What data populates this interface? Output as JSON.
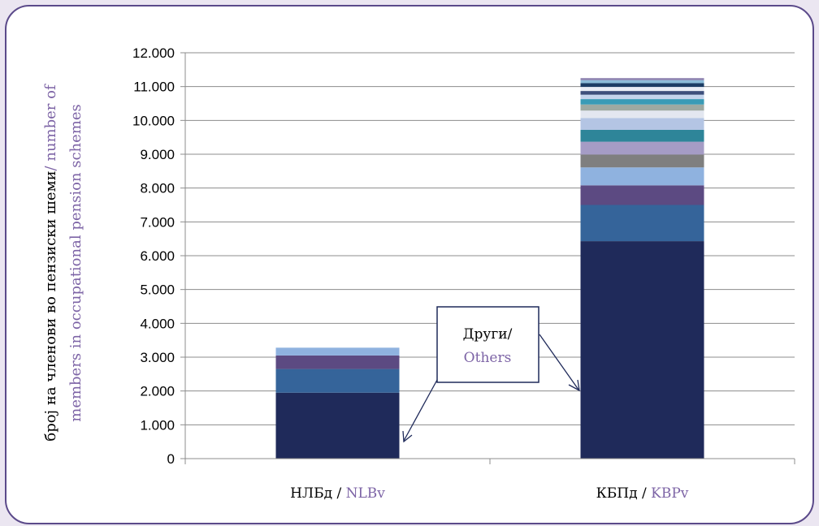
{
  "chart_data": {
    "type": "bar",
    "stacked": true,
    "grid": true,
    "ylim": [
      0,
      12000
    ],
    "ytick_step": 1000,
    "ytick_labels": [
      "0",
      "1.000",
      "2.000",
      "3.000",
      "4.000",
      "5.000",
      "6.000",
      "7.000",
      "8.000",
      "9.000",
      "10.000",
      "11.000",
      "12.000"
    ],
    "ylabel_native": "број на членови во пензиски шеми",
    "ylabel_sep": "/",
    "ylabel_english": "number of members in occupational pension schemes",
    "categories": [
      {
        "native": "НЛБд",
        "sep": "/",
        "english": "NLBv"
      },
      {
        "native": "КБПд",
        "sep": "/",
        "english": "KBPv"
      }
    ],
    "stacks": [
      [
        {
          "value": 1950,
          "color": "#1f2a5a"
        },
        {
          "value": 700,
          "color": "#35649a"
        },
        {
          "value": 400,
          "color": "#5c4a82"
        },
        {
          "value": 230,
          "color": "#8fb2df"
        }
      ],
      [
        {
          "value": 6430,
          "color": "#1f2a5a"
        },
        {
          "value": 1070,
          "color": "#35649a"
        },
        {
          "value": 580,
          "color": "#5c4a82"
        },
        {
          "value": 530,
          "color": "#8fb2df"
        },
        {
          "value": 380,
          "color": "#7f7f7f"
        },
        {
          "value": 380,
          "color": "#a59cc5"
        },
        {
          "value": 350,
          "color": "#2e8599"
        },
        {
          "value": 350,
          "color": "#b4c5e4"
        },
        {
          "value": 220,
          "color": "#e3e7f0"
        },
        {
          "value": 180,
          "color": "#9ea9a2"
        },
        {
          "value": 160,
          "color": "#3a9bb6"
        },
        {
          "value": 130,
          "color": "#c4d4ec"
        },
        {
          "value": 110,
          "color": "#3d4f7c"
        },
        {
          "value": 120,
          "color": "#e9edf5"
        },
        {
          "value": 110,
          "color": "#1c3d64"
        },
        {
          "value": 90,
          "color": "#8bbcd8"
        },
        {
          "value": 60,
          "color": "#8a7fae"
        }
      ]
    ],
    "annotation": {
      "line1": "Други/",
      "line2": "Others"
    }
  },
  "colors": {
    "english_text": "#7d64a6",
    "frame": "#5b4a8a",
    "background": "#ebe6f1",
    "callout_border": "#1f2a5a"
  }
}
